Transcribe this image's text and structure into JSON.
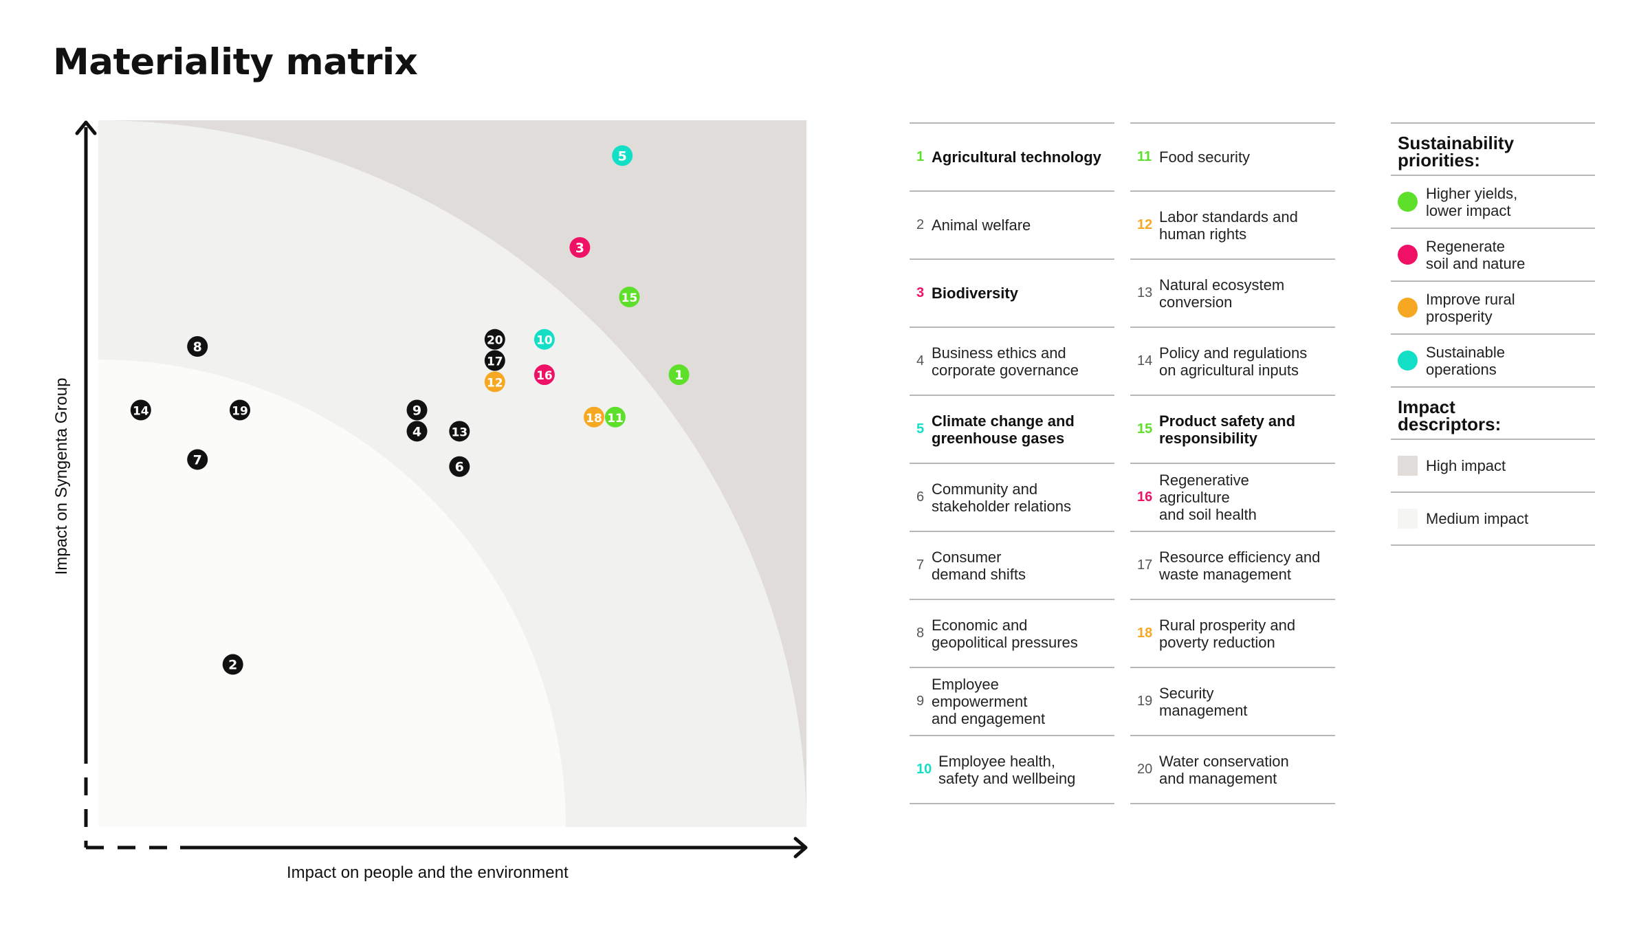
{
  "page": {
    "title": "Materiality matrix"
  },
  "colors": {
    "green": "#5ee02a",
    "pink": "#ee1166",
    "orange": "#f7a823",
    "teal": "#13dfc6",
    "black": "#111111",
    "high_impact": "#dfdcd9",
    "medium_impact": "#f5f5f4"
  },
  "chart_data": {
    "type": "scatter",
    "title": "Materiality matrix",
    "xlabel": "Impact on people and the environment",
    "ylabel": "Impact on Syngenta Group",
    "xlim": [
      0,
      100
    ],
    "ylim": [
      0,
      100
    ],
    "grid": false,
    "regions": [
      {
        "name": "High impact",
        "color": "high_impact"
      },
      {
        "name": "Medium impact",
        "color": "medium_impact"
      }
    ],
    "points": [
      {
        "id": "1",
        "x": 82,
        "y": 64,
        "group": "green"
      },
      {
        "id": "2",
        "x": 19,
        "y": 23,
        "group": "black"
      },
      {
        "id": "3",
        "x": 68,
        "y": 82,
        "group": "pink"
      },
      {
        "id": "4",
        "x": 45,
        "y": 56,
        "group": "black"
      },
      {
        "id": "5",
        "x": 74,
        "y": 95,
        "group": "teal"
      },
      {
        "id": "6",
        "x": 51,
        "y": 51,
        "group": "black"
      },
      {
        "id": "7",
        "x": 14,
        "y": 52,
        "group": "black"
      },
      {
        "id": "8",
        "x": 14,
        "y": 68,
        "group": "black"
      },
      {
        "id": "9",
        "x": 45,
        "y": 59,
        "group": "black"
      },
      {
        "id": "10",
        "x": 63,
        "y": 69,
        "group": "teal"
      },
      {
        "id": "11",
        "x": 73,
        "y": 58,
        "group": "green"
      },
      {
        "id": "12",
        "x": 56,
        "y": 63,
        "group": "orange"
      },
      {
        "id": "13",
        "x": 51,
        "y": 56,
        "group": "black"
      },
      {
        "id": "14",
        "x": 6,
        "y": 59,
        "group": "black"
      },
      {
        "id": "15",
        "x": 75,
        "y": 75,
        "group": "green"
      },
      {
        "id": "16",
        "x": 63,
        "y": 64,
        "group": "pink"
      },
      {
        "id": "17",
        "x": 56,
        "y": 66,
        "group": "black"
      },
      {
        "id": "18",
        "x": 70,
        "y": 58,
        "group": "orange"
      },
      {
        "id": "19",
        "x": 20,
        "y": 59,
        "group": "black"
      },
      {
        "id": "20",
        "x": 56,
        "y": 69,
        "group": "black"
      }
    ]
  },
  "topics": [
    {
      "num": "1",
      "label": "Agricultural technology",
      "bold": true,
      "color": "green"
    },
    {
      "num": "2",
      "label": "Animal welfare",
      "bold": false,
      "color": "black"
    },
    {
      "num": "3",
      "label": "Biodiversity",
      "bold": true,
      "color": "pink"
    },
    {
      "num": "4",
      "label": "Business ethics and\ncorporate governance",
      "bold": false,
      "color": "black"
    },
    {
      "num": "5",
      "label": "Climate change and\ngreenhouse gases",
      "bold": true,
      "color": "teal"
    },
    {
      "num": "6",
      "label": "Community and\nstakeholder relations",
      "bold": false,
      "color": "black"
    },
    {
      "num": "7",
      "label": "Consumer\ndemand shifts",
      "bold": false,
      "color": "black"
    },
    {
      "num": "8",
      "label": "Economic and\ngeopolitical pressures",
      "bold": false,
      "color": "black"
    },
    {
      "num": "9",
      "label": "Employee\nempowerment\nand engagement",
      "bold": false,
      "color": "black"
    },
    {
      "num": "10",
      "label": "Employee health,\nsafety and wellbeing",
      "bold": false,
      "color": "teal"
    },
    {
      "num": "11",
      "label": "Food security",
      "bold": false,
      "color": "green"
    },
    {
      "num": "12",
      "label": "Labor standards and\nhuman rights",
      "bold": false,
      "color": "orange"
    },
    {
      "num": "13",
      "label": "Natural ecosystem\nconversion",
      "bold": false,
      "color": "black"
    },
    {
      "num": "14",
      "label": "Policy and regulations\non agricultural inputs",
      "bold": false,
      "color": "black"
    },
    {
      "num": "15",
      "label": "Product safety and\nresponsibility",
      "bold": true,
      "color": "green"
    },
    {
      "num": "16",
      "label": "Regenerative\nagriculture\nand soil health",
      "bold": false,
      "color": "pink"
    },
    {
      "num": "17",
      "label": "Resource efficiency and\nwaste management",
      "bold": false,
      "color": "black"
    },
    {
      "num": "18",
      "label": "Rural prosperity and\npoverty reduction",
      "bold": false,
      "color": "orange"
    },
    {
      "num": "19",
      "label": "Security\nmanagement",
      "bold": false,
      "color": "black"
    },
    {
      "num": "20",
      "label": "Water conservation\nand management",
      "bold": false,
      "color": "black"
    }
  ],
  "sustainability": {
    "heading": "Sustainability\npriorities:",
    "items": [
      {
        "label": "Higher yields,\nlower impact",
        "color": "green"
      },
      {
        "label": "Regenerate\nsoil and nature",
        "color": "pink"
      },
      {
        "label": "Improve rural\nprosperity",
        "color": "orange"
      },
      {
        "label": "Sustainable\noperations",
        "color": "teal"
      }
    ]
  },
  "impact": {
    "heading": "Impact\ndescriptors:",
    "items": [
      {
        "label": "High impact",
        "color": "high_impact"
      },
      {
        "label": "Medium impact",
        "color": "medium_impact"
      }
    ]
  }
}
